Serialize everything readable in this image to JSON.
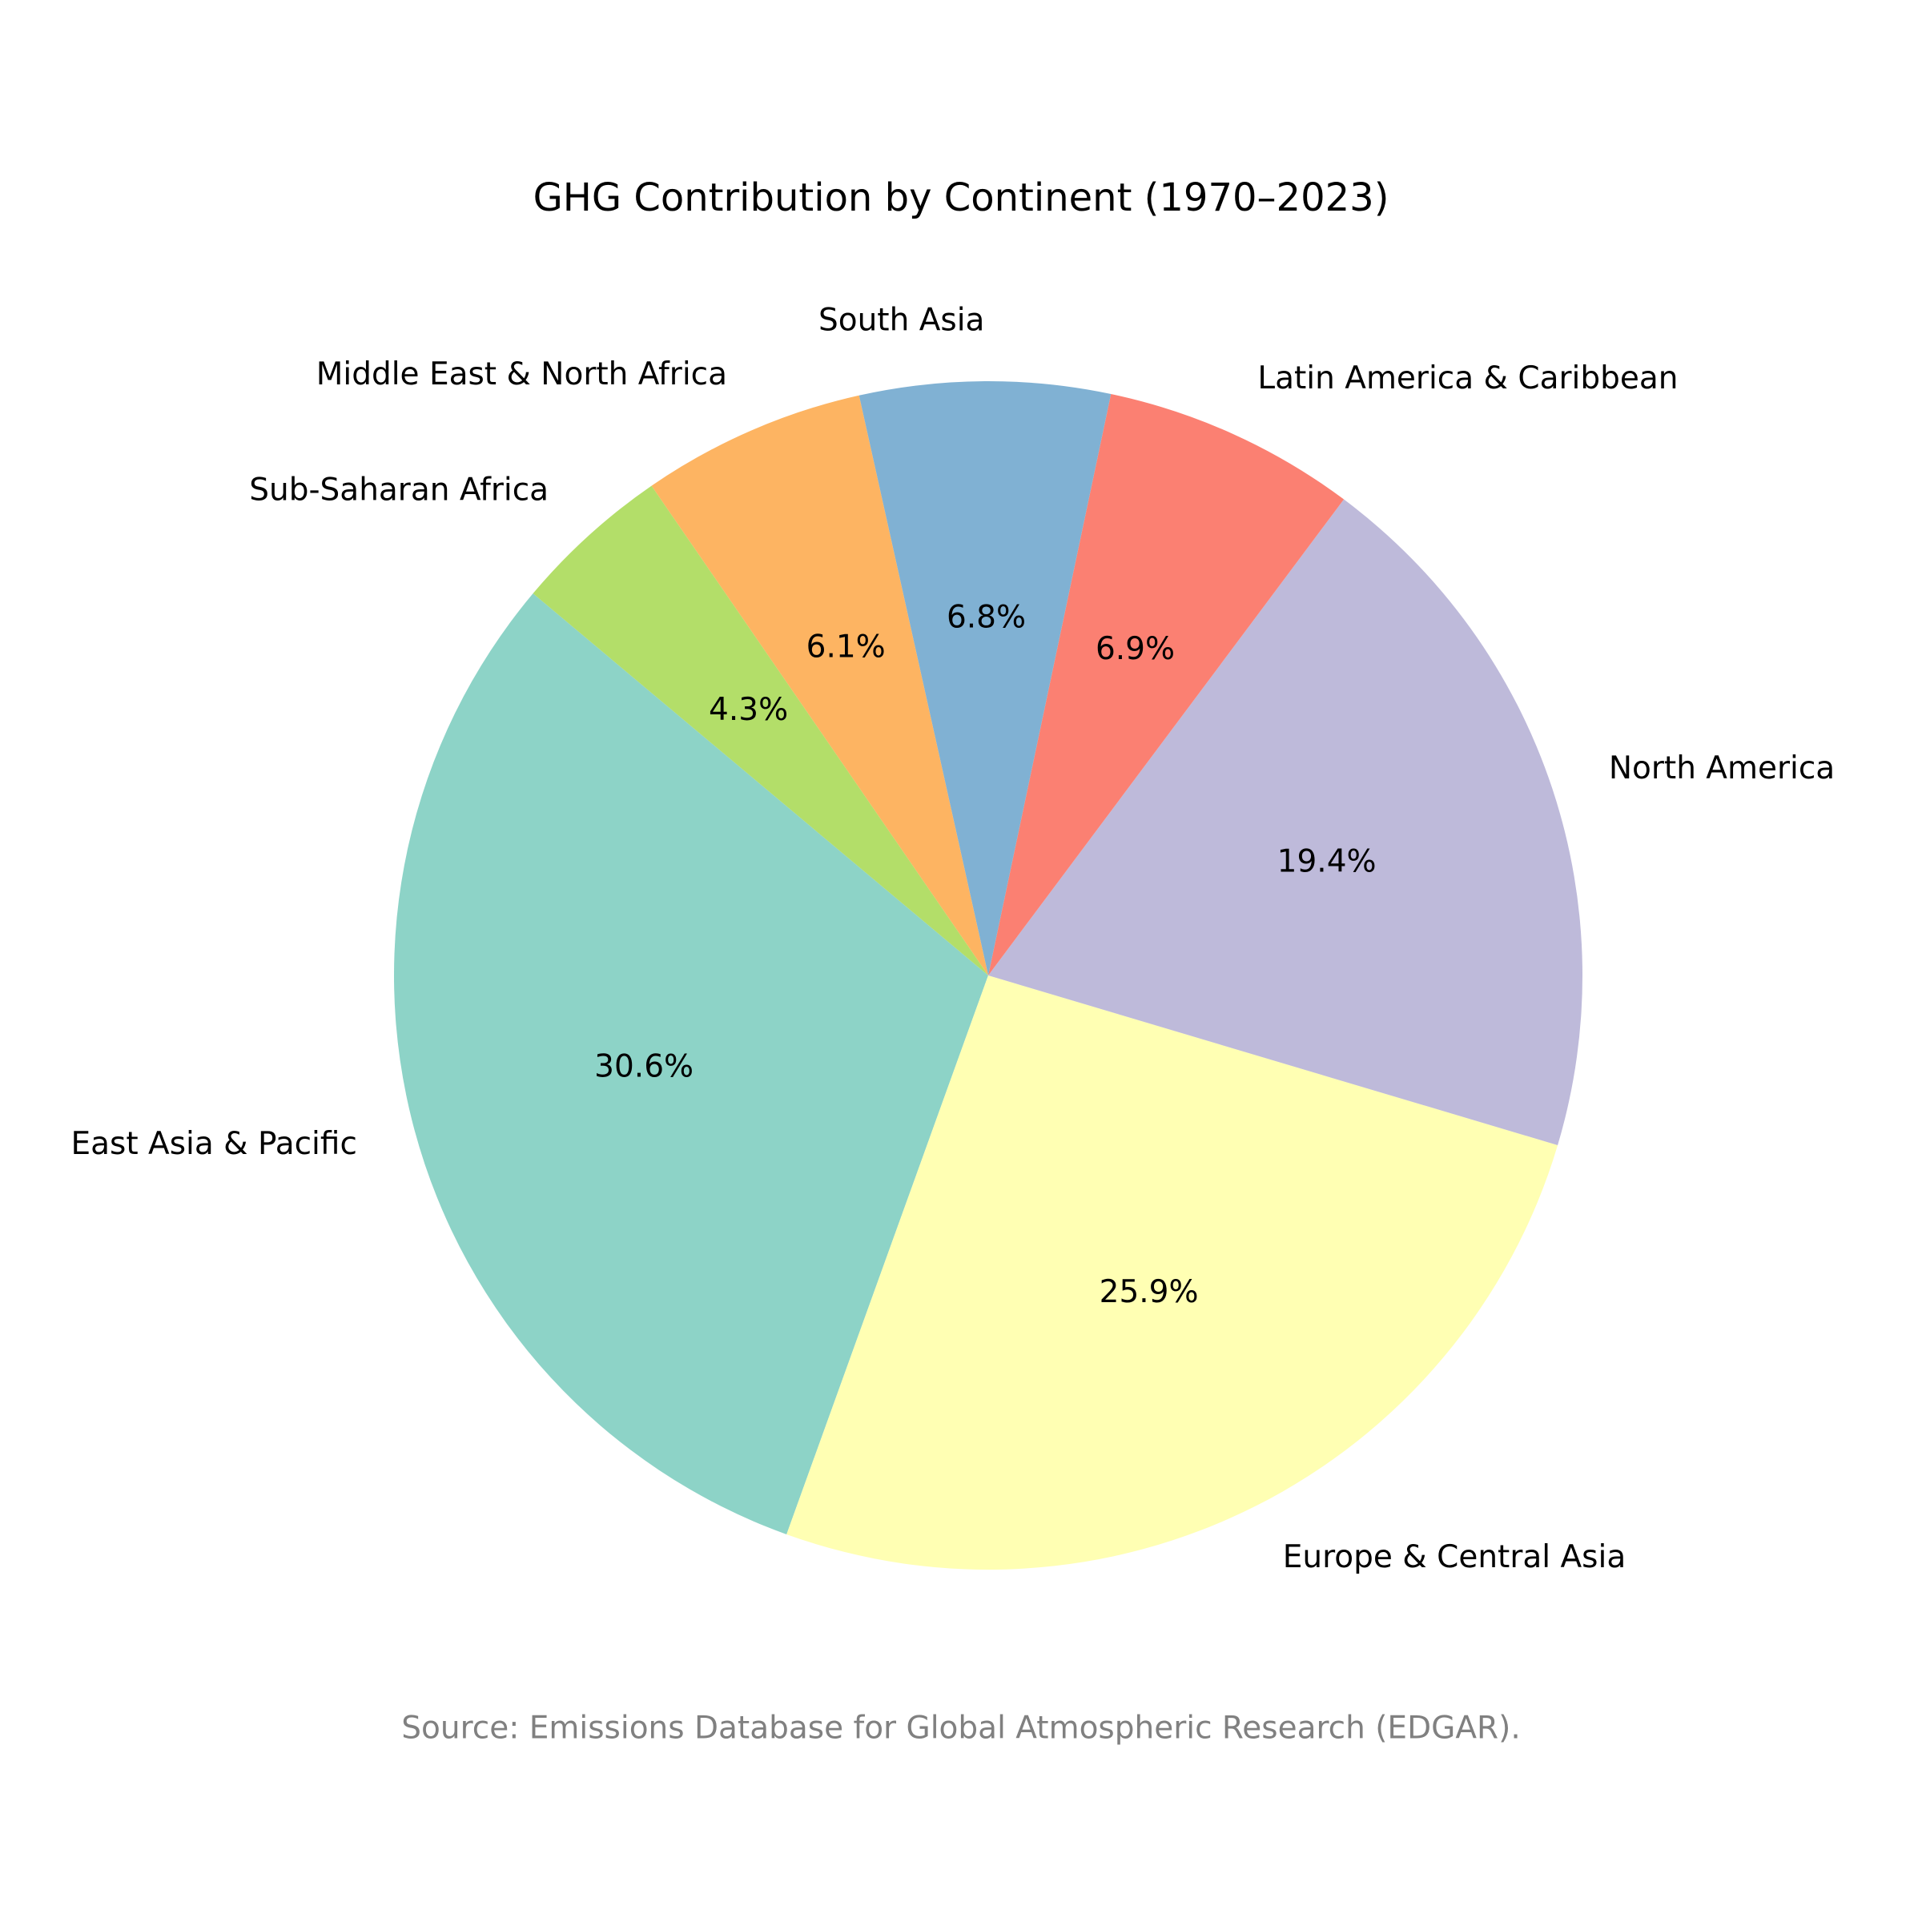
{
  "chart_data": {
    "type": "pie",
    "title": "GHG Contribution by Continent (1970–2023)",
    "slices": [
      {
        "label": "East Asia & Pacific",
        "value": 30.6,
        "pct_label": "30.6%",
        "color": "#8dd3c7"
      },
      {
        "label": "Europe & Central Asia",
        "value": 25.9,
        "pct_label": "25.9%",
        "color": "#ffffb3"
      },
      {
        "label": "North America",
        "value": 19.4,
        "pct_label": "19.4%",
        "color": "#bebada"
      },
      {
        "label": "Latin America & Caribbean",
        "value": 6.9,
        "pct_label": "6.9%",
        "color": "#fb8072"
      },
      {
        "label": "South Asia",
        "value": 6.8,
        "pct_label": "6.8%",
        "color": "#80b1d3"
      },
      {
        "label": "Middle East & North Africa",
        "value": 6.1,
        "pct_label": "6.1%",
        "color": "#fdb462"
      },
      {
        "label": "Sub-Saharan Africa",
        "value": 4.3,
        "pct_label": "4.3%",
        "color": "#b3de69"
      }
    ],
    "start_angle_deg": 140,
    "direction": "counterclockwise",
    "legend": "none",
    "source_note": "Source: Emissions Database for Global Atmospheric Research (EDGAR)."
  }
}
